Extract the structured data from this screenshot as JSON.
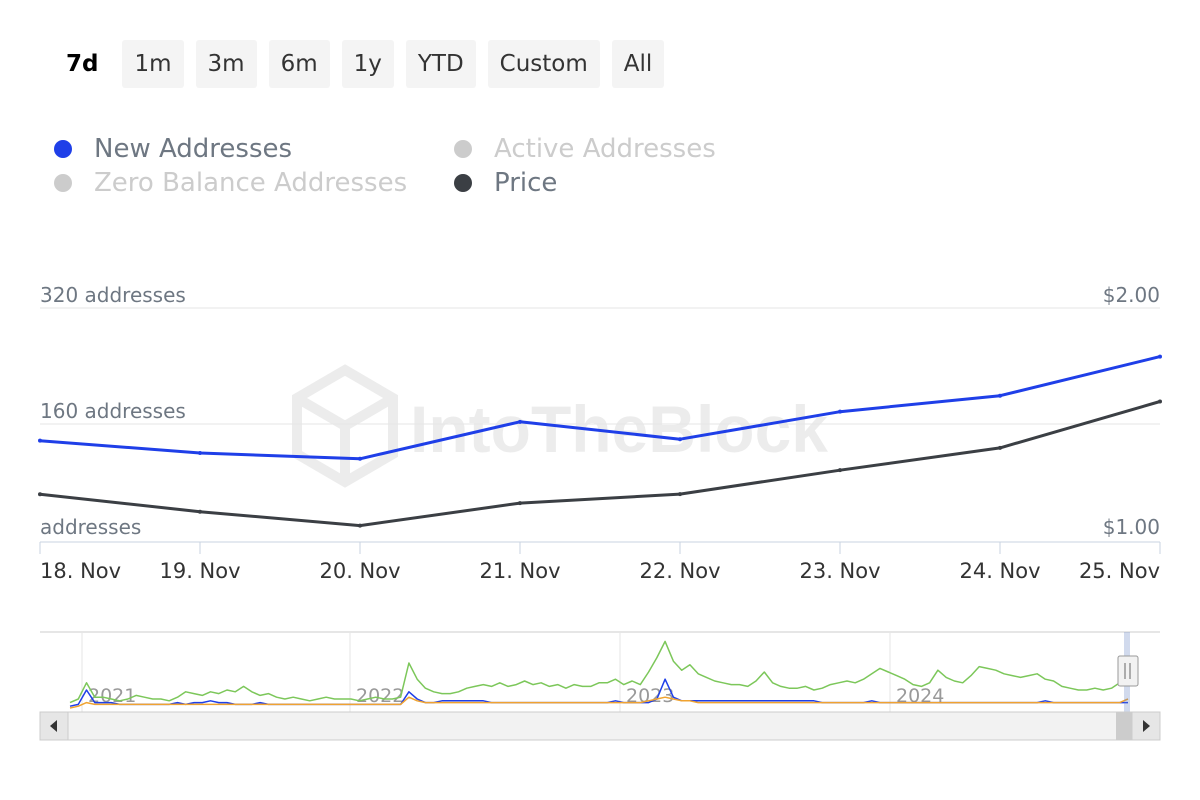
{
  "range_selector": {
    "buttons": [
      "7d",
      "1m",
      "3m",
      "6m",
      "1y",
      "YTD",
      "Custom",
      "All"
    ],
    "selected": "7d"
  },
  "legend": [
    {
      "label": "New Addresses",
      "color": "#1f3fe8",
      "visible": true
    },
    {
      "label": "Active Addresses",
      "color": "#cccccc",
      "visible": false
    },
    {
      "label": "Zero Balance Addresses",
      "color": "#cccccc",
      "visible": false
    },
    {
      "label": "Price",
      "color": "#3b3f44",
      "visible": true
    }
  ],
  "watermark": "IntoTheBlock",
  "chart_data": {
    "type": "line",
    "x": [
      "18. Nov",
      "19. Nov",
      "20. Nov",
      "21. Nov",
      "22. Nov",
      "23. Nov",
      "24. Nov",
      "25. Nov"
    ],
    "x_axis": {
      "label_align": [
        "left",
        "center",
        "center",
        "center",
        "center",
        "center",
        "center",
        "right"
      ]
    },
    "y_left": {
      "ticks": [
        0,
        160,
        320
      ],
      "tick_labels": [
        "addresses",
        "160 addresses",
        "320 addresses"
      ],
      "min": 0,
      "max": 320
    },
    "y_right": {
      "ticks": [
        1.0,
        2.0
      ],
      "tick_labels": [
        "$1.00",
        "$2.00"
      ],
      "min": 1.0,
      "max": 2.0
    },
    "grid": true,
    "legend_position": "top-left",
    "series": [
      {
        "name": "New Addresses",
        "axis": "left",
        "color": "#1f3fe8",
        "values": [
          137,
          120,
          112,
          163,
          139,
          177,
          199,
          253
        ]
      },
      {
        "name": "Price",
        "axis": "right",
        "color": "#3b3f44",
        "values": [
          1.197,
          1.122,
          1.062,
          1.159,
          1.198,
          1.301,
          1.397,
          1.597
        ]
      }
    ]
  },
  "navigator": {
    "year_labels": [
      "2021",
      "2022",
      "2023",
      "2024"
    ],
    "series": [
      {
        "color": "#7cc75a",
        "values": [
          3,
          5,
          14,
          6,
          6,
          5,
          4,
          5,
          7,
          6,
          5,
          5,
          4,
          6,
          9,
          8,
          7,
          9,
          8,
          10,
          9,
          12,
          9,
          7,
          8,
          6,
          5,
          6,
          5,
          4,
          5,
          6,
          5,
          5,
          5,
          4,
          5,
          6,
          5,
          5,
          6,
          25,
          16,
          11,
          9,
          8,
          8,
          9,
          11,
          12,
          13,
          12,
          14,
          12,
          13,
          15,
          13,
          14,
          12,
          13,
          11,
          13,
          12,
          12,
          14,
          14,
          16,
          13,
          15,
          13,
          20,
          28,
          37,
          26,
          21,
          24,
          19,
          17,
          15,
          14,
          13,
          13,
          12,
          15,
          20,
          14,
          12,
          11,
          11,
          12,
          10,
          11,
          13,
          14,
          15,
          14,
          16,
          19,
          22,
          20,
          18,
          16,
          13,
          12,
          14,
          21,
          17,
          15,
          14,
          18,
          23,
          22,
          21,
          19,
          18,
          17,
          18,
          19,
          16,
          15,
          12,
          11,
          10,
          10,
          11,
          10,
          11,
          14,
          21
        ]
      },
      {
        "color": "#1f3fe8",
        "values": [
          1,
          2,
          10,
          3,
          3,
          3,
          2,
          2,
          2,
          2,
          2,
          2,
          2,
          3,
          2,
          3,
          3,
          4,
          3,
          3,
          2,
          2,
          2,
          3,
          2,
          2,
          2,
          2,
          2,
          2,
          2,
          2,
          2,
          2,
          2,
          2,
          2,
          2,
          2,
          2,
          2,
          9,
          5,
          3,
          3,
          4,
          4,
          4,
          4,
          4,
          4,
          3,
          3,
          3,
          3,
          3,
          3,
          3,
          3,
          3,
          3,
          3,
          3,
          3,
          3,
          3,
          4,
          3,
          3,
          3,
          3,
          5,
          16,
          6,
          4,
          4,
          4,
          4,
          4,
          4,
          4,
          4,
          4,
          4,
          4,
          4,
          4,
          4,
          4,
          4,
          4,
          3,
          3,
          3,
          3,
          3,
          3,
          4,
          3,
          3,
          3,
          3,
          3,
          3,
          3,
          3,
          3,
          3,
          3,
          3,
          3,
          3,
          3,
          3,
          3,
          3,
          3,
          3,
          4,
          3,
          3,
          3,
          3,
          3,
          3,
          3,
          3,
          3,
          3
        ]
      },
      {
        "color": "#f0a330",
        "values": [
          0,
          1,
          3,
          2,
          2,
          2,
          2,
          2,
          2,
          2,
          2,
          2,
          2,
          2,
          2,
          2,
          2,
          2,
          2,
          2,
          2,
          2,
          2,
          2,
          2,
          2,
          2,
          2,
          2,
          2,
          2,
          2,
          2,
          2,
          2,
          2,
          2,
          2,
          2,
          2,
          2,
          6,
          4,
          3,
          3,
          3,
          3,
          3,
          3,
          3,
          3,
          3,
          3,
          3,
          3,
          3,
          3,
          3,
          3,
          3,
          3,
          3,
          3,
          3,
          3,
          3,
          3,
          3,
          3,
          3,
          4,
          5,
          6,
          5,
          4,
          4,
          3,
          3,
          3,
          3,
          3,
          3,
          3,
          3,
          3,
          3,
          3,
          3,
          3,
          3,
          3,
          3,
          3,
          3,
          3,
          3,
          3,
          3,
          3,
          3,
          3,
          3,
          3,
          3,
          3,
          3,
          3,
          3,
          3,
          3,
          3,
          3,
          3,
          3,
          3,
          3,
          3,
          3,
          3,
          3,
          3,
          3,
          3,
          3,
          3,
          3,
          3,
          3,
          5
        ]
      }
    ]
  }
}
